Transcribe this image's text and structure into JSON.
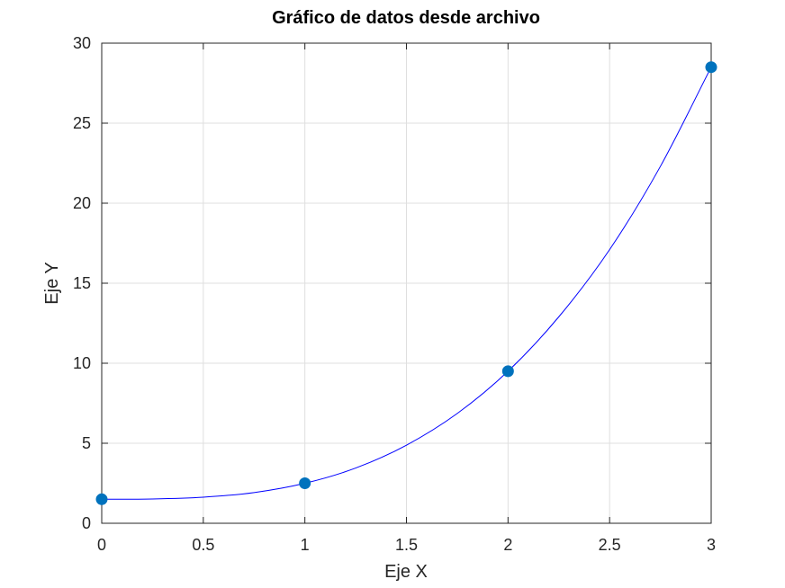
{
  "chart_data": {
    "type": "line",
    "title": "Gráfico de datos desde archivo",
    "xlabel": "Eje X",
    "ylabel": "Eje Y",
    "xlim": [
      0,
      3
    ],
    "ylim": [
      0,
      30
    ],
    "xticks": [
      0,
      0.5,
      1,
      1.5,
      2,
      2.5,
      3
    ],
    "xtick_labels": [
      "0",
      "0.5",
      "1",
      "1.5",
      "2",
      "2.5",
      "3"
    ],
    "yticks": [
      0,
      5,
      10,
      15,
      20,
      25,
      30
    ],
    "ytick_labels": [
      "0",
      "5",
      "10",
      "15",
      "20",
      "25",
      "30"
    ],
    "grid": true,
    "series": [
      {
        "kind": "curve",
        "color": "#0000ff",
        "x": [
          0,
          0.25,
          0.5,
          0.75,
          1,
          1.25,
          1.5,
          1.75,
          2,
          2.25,
          2.5,
          2.75,
          3
        ],
        "y": [
          1.5,
          1.52,
          1.63,
          1.92,
          2.5,
          3.45,
          4.88,
          6.86,
          9.5,
          12.9,
          17.1,
          22.3,
          28.5
        ]
      },
      {
        "kind": "markers",
        "color": "#0072bd",
        "x": [
          0,
          1,
          2,
          3
        ],
        "y": [
          1.5,
          2.5,
          9.5,
          28.5
        ]
      }
    ]
  }
}
